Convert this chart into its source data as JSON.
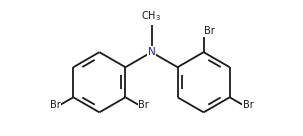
{
  "bg_color": "#ffffff",
  "line_color": "#1a1a1a",
  "N_color": "#2020c0",
  "Br_color": "#1a1a1a",
  "line_width": 1.3,
  "font_size": 7.5,
  "br_font_size": 7.0,
  "methyl_label": "CH3",
  "N_label": "N",
  "Br_label": "Br"
}
